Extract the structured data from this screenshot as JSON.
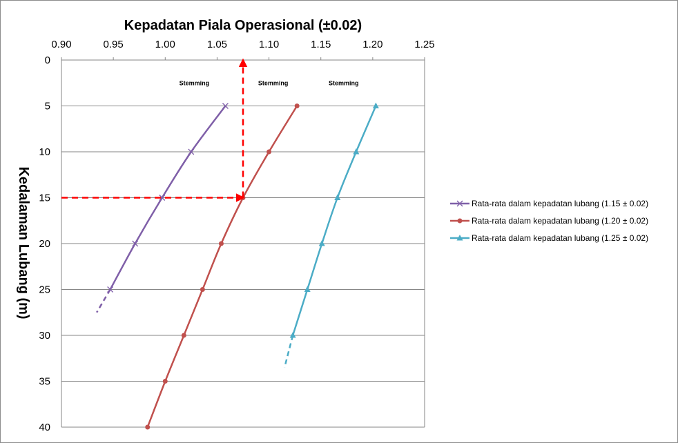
{
  "chart_data": {
    "type": "line",
    "title": "Kepadatan Piala Operasional (±0.02)",
    "xlabel": "Kepadatan Piala Operasional (±0.02)",
    "ylabel": "Kedalaman Lubang (m)",
    "xlim": [
      0.9,
      1.25
    ],
    "ylim": [
      0,
      40
    ],
    "y_inverted": true,
    "x_axis_position": "top",
    "x_ticks": [
      "0.90",
      "0.95",
      "1.00",
      "1.05",
      "1.10",
      "1.15",
      "1.20",
      "1.25"
    ],
    "y_ticks": [
      "0",
      "5",
      "10",
      "15",
      "20",
      "25",
      "30",
      "35",
      "40"
    ],
    "grid": "horizontal",
    "legend_position": "right",
    "annotations": [
      {
        "text": "Stemming",
        "x": 1.028,
        "y": 2.5
      },
      {
        "text": "Stemming",
        "x": 1.104,
        "y": 2.5
      },
      {
        "text": "Stemming",
        "x": 1.172,
        "y": 2.5
      }
    ],
    "reference_lines": [
      {
        "description": "horizontal",
        "x0": 0.9,
        "y0": 15,
        "x1": 1.075,
        "y1": 15
      },
      {
        "description": "vertical",
        "x0": 1.075,
        "y0": 15,
        "x1": 1.075,
        "y1": 0
      }
    ],
    "series": [
      {
        "name": "Rata-rata dalam kepadatan lubang (1.15 ± 0.02)",
        "color": "#7f5fa8",
        "marker": "x",
        "points": [
          [
            1.058,
            5
          ],
          [
            1.025,
            10
          ],
          [
            0.997,
            15
          ],
          [
            0.971,
            20
          ],
          [
            0.947,
            25
          ]
        ],
        "extrapolation": [
          [
            0.947,
            25
          ],
          [
            0.934,
            27.5
          ]
        ]
      },
      {
        "name": "Rata-rata dalam kepadatan lubang (1.20 ± 0.02)",
        "color": "#c0504d",
        "marker": "circle",
        "points": [
          [
            1.127,
            5
          ],
          [
            1.1,
            10
          ],
          [
            1.075,
            15
          ],
          [
            1.054,
            20
          ],
          [
            1.036,
            25
          ],
          [
            1.018,
            30
          ],
          [
            1.0,
            35
          ],
          [
            0.983,
            40
          ]
        ],
        "extrapolation": []
      },
      {
        "name": "Rata-rata dalam kepadatan lubang (1.25 ± 0.02)",
        "color": "#4bacc6",
        "marker": "triangle",
        "points": [
          [
            1.203,
            5
          ],
          [
            1.184,
            10
          ],
          [
            1.166,
            15
          ],
          [
            1.151,
            20
          ],
          [
            1.137,
            25
          ],
          [
            1.123,
            30
          ]
        ],
        "extrapolation": [
          [
            1.123,
            30
          ],
          [
            1.115,
            33.5
          ]
        ]
      }
    ]
  }
}
